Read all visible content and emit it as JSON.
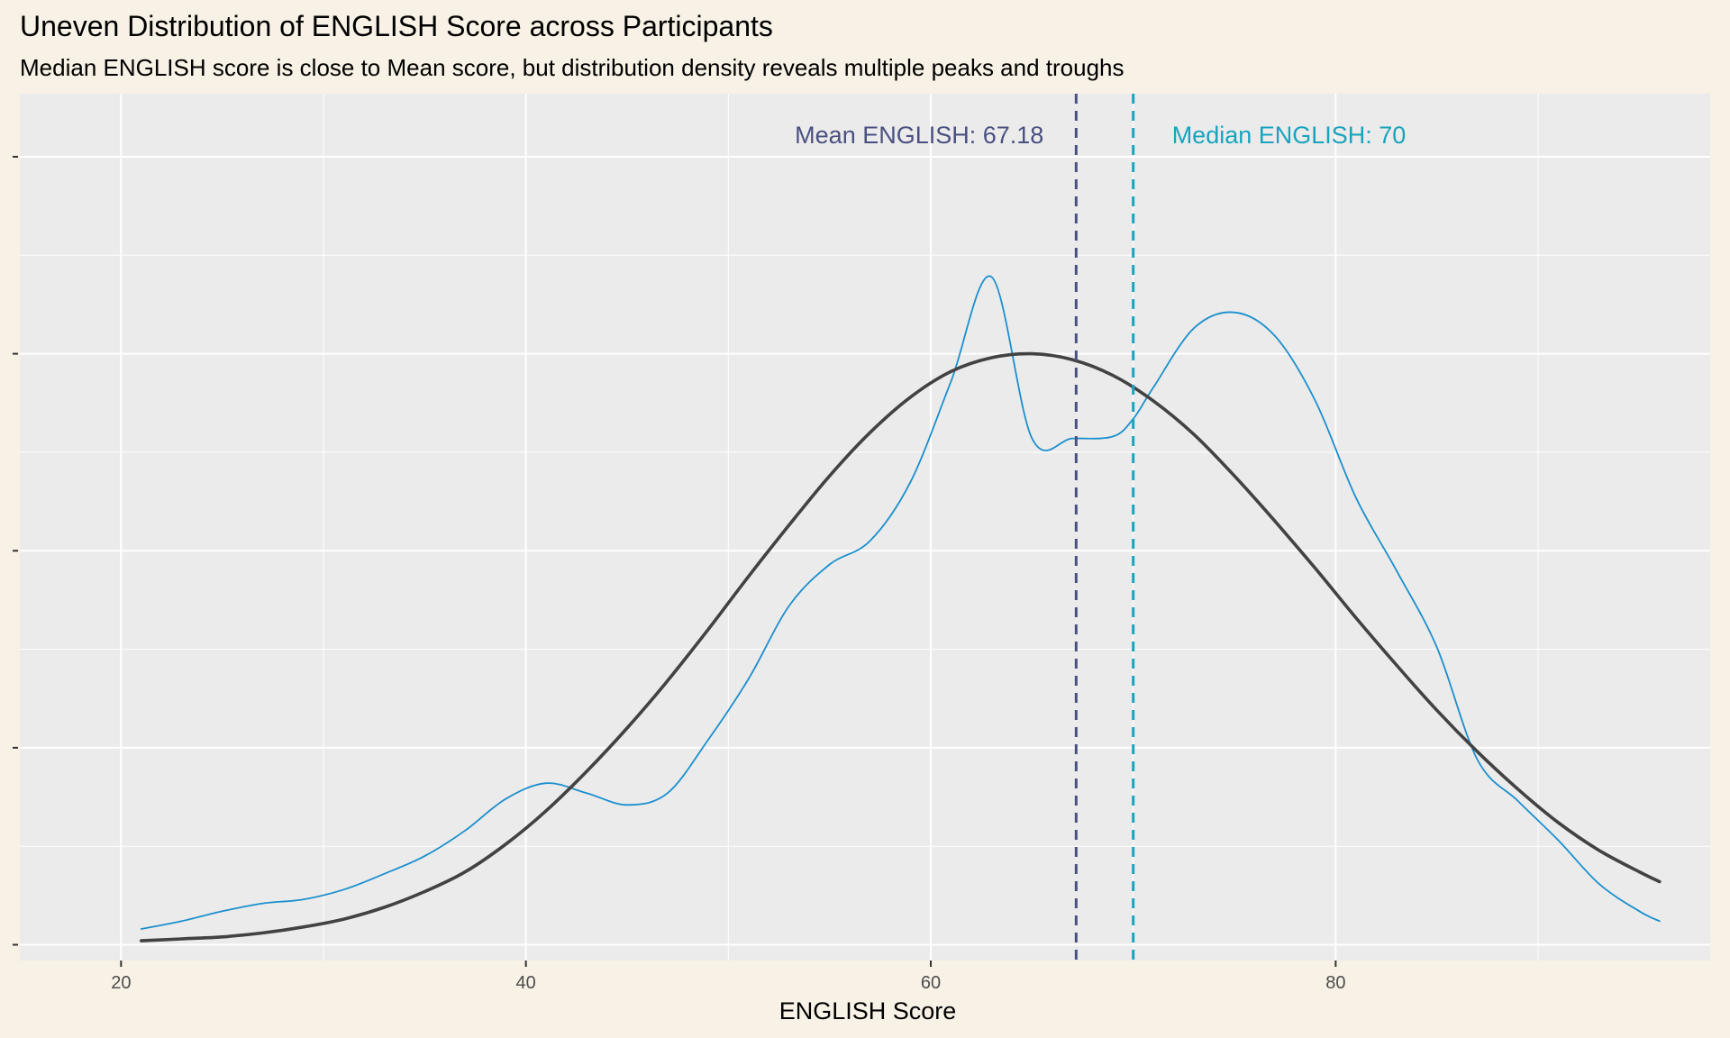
{
  "chart_data": {
    "type": "line",
    "title": "Uneven Distribution of ENGLISH Score across Participants",
    "subtitle": "Median ENGLISH score is close to Mean score, but distribution density reveals multiple peaks and troughs",
    "xlabel": "ENGLISH Score",
    "ylabel": "",
    "xlim": [
      15,
      98.5
    ],
    "ylim": [
      -0.0008,
      0.0432
    ],
    "x_ticks": [
      20,
      40,
      60,
      80
    ],
    "y_ticks": [
      0,
      0.01,
      0.02,
      0.03,
      0.04
    ],
    "y_tick_labels_shown": false,
    "grid": true,
    "series": [
      {
        "color": "#1b8fce",
        "style": "thin",
        "x": [
          21,
          23,
          25,
          27,
          29,
          31,
          33,
          35,
          37,
          39,
          41,
          43,
          45,
          47,
          49,
          51,
          53,
          55,
          57,
          59,
          61,
          63,
          65,
          67,
          69,
          70,
          71,
          73,
          75,
          77,
          79,
          81,
          83,
          85,
          87,
          89,
          91,
          93,
          95,
          96
        ],
        "values": [
          0.0008,
          0.0012,
          0.0017,
          0.0021,
          0.0023,
          0.0028,
          0.0036,
          0.0045,
          0.0058,
          0.0074,
          0.0082,
          0.0077,
          0.0071,
          0.0077,
          0.0104,
          0.0135,
          0.0172,
          0.0193,
          0.0205,
          0.0235,
          0.0286,
          0.0339,
          0.0257,
          0.0257,
          0.0258,
          0.0267,
          0.0283,
          0.0313,
          0.0321,
          0.0309,
          0.0276,
          0.0227,
          0.019,
          0.0151,
          0.0094,
          0.0073,
          0.0053,
          0.0031,
          0.0017,
          0.0012
        ]
      },
      {
        "color": "#424242",
        "style": "thick",
        "x": [
          21,
          23,
          25,
          27,
          29,
          31,
          33,
          35,
          37,
          39,
          41,
          43,
          45,
          47,
          49,
          51,
          53,
          55,
          57,
          59,
          61,
          63,
          65,
          67,
          69,
          71,
          73,
          75,
          77,
          79,
          81,
          83,
          85,
          87,
          89,
          91,
          93,
          95,
          96
        ],
        "values": [
          0.0002,
          0.0003,
          0.0004,
          0.0006,
          0.0009,
          0.0013,
          0.0019,
          0.0027,
          0.0037,
          0.0051,
          0.0068,
          0.0088,
          0.011,
          0.0134,
          0.016,
          0.0187,
          0.0213,
          0.0238,
          0.026,
          0.0278,
          0.0291,
          0.0298,
          0.03,
          0.0297,
          0.0289,
          0.0276,
          0.0259,
          0.0238,
          0.0215,
          0.0191,
          0.0166,
          0.0142,
          0.0119,
          0.0098,
          0.0079,
          0.0062,
          0.0048,
          0.0037,
          0.0032
        ]
      }
    ],
    "vlines": [
      {
        "value": 67.18,
        "color": "#4a5080",
        "label": "Mean ENGLISH: 67.18",
        "label_side": "left"
      },
      {
        "value": 70,
        "color": "#18a4bd",
        "label": "Median ENGLISH: 70",
        "label_side": "right"
      }
    ],
    "colors": {
      "page_background": "#f8f1e5",
      "panel_background": "#ebebeb",
      "grid": "#ffffff"
    }
  }
}
